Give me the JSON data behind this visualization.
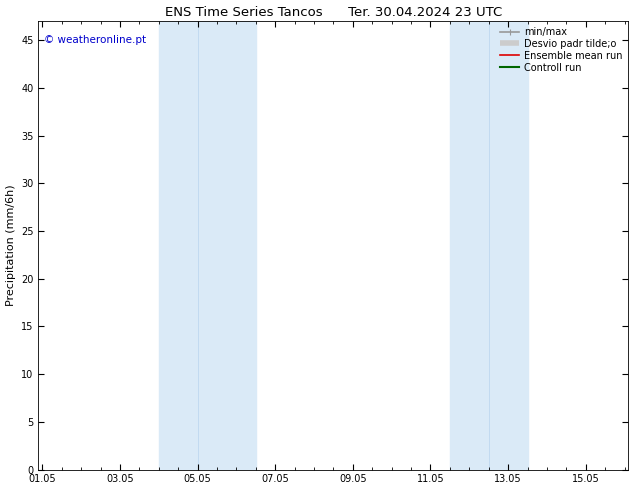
{
  "title": "ENS Time Series Tancos      Ter. 30.04.2024 23 UTC",
  "ylabel": "Precipitation (mm/6h)",
  "ylim": [
    0,
    47
  ],
  "yticks": [
    0,
    5,
    10,
    15,
    20,
    25,
    30,
    35,
    40,
    45
  ],
  "xtick_labels": [
    "01.05",
    "03.05",
    "05.05",
    "07.05",
    "09.05",
    "11.05",
    "13.05",
    "15.05"
  ],
  "xtick_positions": [
    0,
    2,
    4,
    6,
    8,
    10,
    12,
    14
  ],
  "xlim": [
    -0.1,
    15.1
  ],
  "shaded_bands": [
    {
      "x_start": 3.0,
      "x_end": 4.0,
      "color": "#daeaf7"
    },
    {
      "x_start": 4.0,
      "x_end": 5.5,
      "color": "#daeaf7"
    },
    {
      "x_start": 10.5,
      "x_end": 11.5,
      "color": "#daeaf7"
    },
    {
      "x_start": 11.5,
      "x_end": 12.5,
      "color": "#daeaf7"
    }
  ],
  "watermark_text": "© weatheronline.pt",
  "watermark_color": "#0000cc",
  "watermark_fontsize": 7.5,
  "legend_items": [
    {
      "label": "min/max",
      "color": "#999999",
      "lw": 1.2,
      "style": "minmax"
    },
    {
      "label": "Desvio padr tilde;o",
      "color": "#cccccc",
      "lw": 5,
      "style": "band"
    },
    {
      "label": "Ensemble mean run",
      "color": "#dd0000",
      "lw": 1.2,
      "style": "line"
    },
    {
      "label": "Controll run",
      "color": "#006600",
      "lw": 1.5,
      "style": "line"
    }
  ],
  "background_color": "#ffffff",
  "plot_bg_color": "#ffffff",
  "tick_fontsize": 7,
  "label_fontsize": 8,
  "title_fontsize": 9.5,
  "legend_fontsize": 7
}
